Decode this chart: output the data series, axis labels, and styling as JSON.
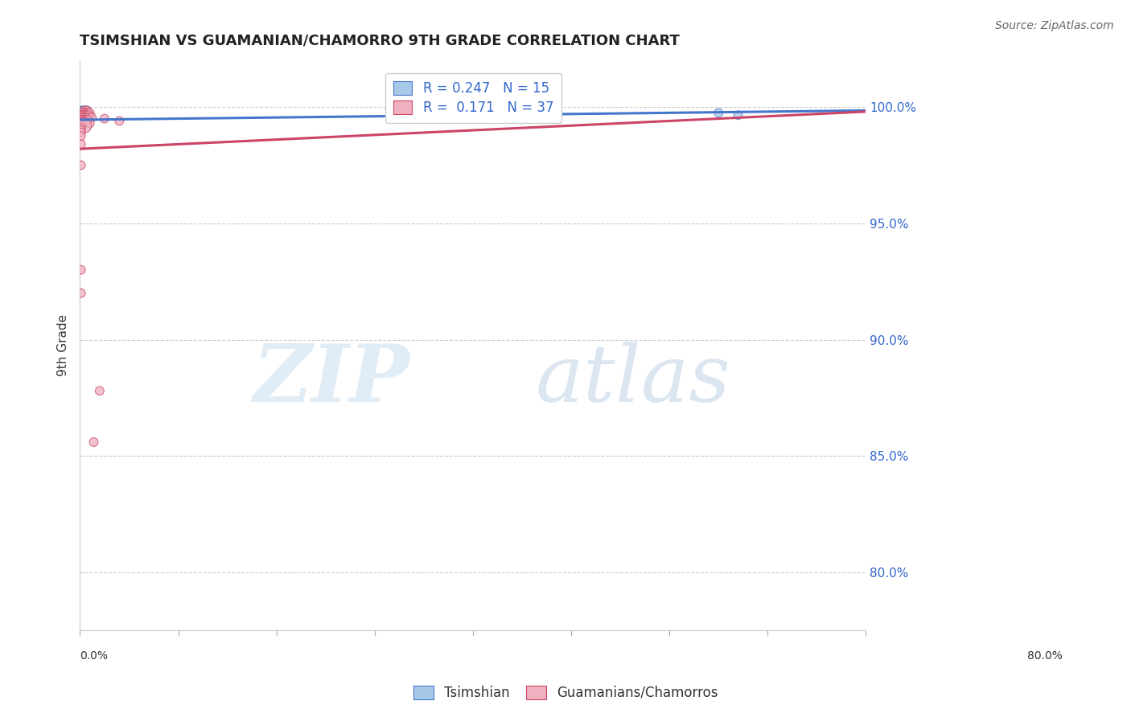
{
  "title": "TSIMSHIAN VS GUAMANIAN/CHAMORRO 9TH GRADE CORRELATION CHART",
  "source": "Source: ZipAtlas.com",
  "ylabel": "9th Grade",
  "ylabel_ticks": [
    "100.0%",
    "95.0%",
    "90.0%",
    "85.0%",
    "80.0%"
  ],
  "ylabel_values": [
    1.0,
    0.95,
    0.9,
    0.85,
    0.8
  ],
  "xtick_labels": [
    "0.0%",
    "",
    "",
    "",
    "",
    "",
    "",
    "",
    "80.0%"
  ],
  "xmin": 0.0,
  "xmax": 0.8,
  "ymin": 0.775,
  "ymax": 1.02,
  "legend_tsimshian_R": "0.247",
  "legend_tsimshian_N": "15",
  "legend_guamanian_R": "0.171",
  "legend_guamanian_N": "37",
  "blue_scatter_color": "#a8c8e8",
  "blue_line_color": "#4477cc",
  "pink_scatter_color": "#f0b0c0",
  "pink_line_color": "#cc4466",
  "legend_text_color": "#3366cc",
  "watermark_zip": "ZIP",
  "watermark_atlas": "atlas",
  "tsimshian_points": [
    [
      0.001,
      0.9985
    ],
    [
      0.003,
      0.9985
    ],
    [
      0.004,
      0.9985
    ],
    [
      0.006,
      0.9985
    ],
    [
      0.007,
      0.9985
    ],
    [
      0.003,
      0.9975
    ],
    [
      0.005,
      0.9975
    ],
    [
      0.006,
      0.9975
    ],
    [
      0.008,
      0.9975
    ],
    [
      0.005,
      0.9965
    ],
    [
      0.007,
      0.9965
    ],
    [
      0.009,
      0.9965
    ],
    [
      0.01,
      0.996
    ],
    [
      0.65,
      0.9975
    ],
    [
      0.67,
      0.9965
    ]
  ],
  "tsimshian_sizes": [
    60,
    60,
    60,
    60,
    60,
    80,
    60,
    100,
    60,
    120,
    60,
    60,
    60,
    60,
    60
  ],
  "guamanian_points": [
    [
      0.004,
      0.9985
    ],
    [
      0.007,
      0.9985
    ],
    [
      0.004,
      0.9975
    ],
    [
      0.006,
      0.9975
    ],
    [
      0.008,
      0.9975
    ],
    [
      0.01,
      0.9975
    ],
    [
      0.003,
      0.9965
    ],
    [
      0.005,
      0.9965
    ],
    [
      0.007,
      0.9965
    ],
    [
      0.009,
      0.9965
    ],
    [
      0.003,
      0.9955
    ],
    [
      0.005,
      0.9955
    ],
    [
      0.007,
      0.9955
    ],
    [
      0.009,
      0.9955
    ],
    [
      0.012,
      0.9955
    ],
    [
      0.002,
      0.9945
    ],
    [
      0.004,
      0.9945
    ],
    [
      0.006,
      0.9945
    ],
    [
      0.008,
      0.9945
    ],
    [
      0.002,
      0.9935
    ],
    [
      0.004,
      0.9935
    ],
    [
      0.006,
      0.9935
    ],
    [
      0.01,
      0.993
    ],
    [
      0.002,
      0.992
    ],
    [
      0.004,
      0.992
    ],
    [
      0.001,
      0.991
    ],
    [
      0.001,
      0.99
    ],
    [
      0.001,
      0.989
    ],
    [
      0.001,
      0.9875
    ],
    [
      0.025,
      0.995
    ],
    [
      0.04,
      0.994
    ],
    [
      0.001,
      0.984
    ],
    [
      0.001,
      0.975
    ],
    [
      0.02,
      0.878
    ],
    [
      0.014,
      0.856
    ],
    [
      0.001,
      0.93
    ],
    [
      0.001,
      0.92
    ]
  ],
  "guamanian_sizes": [
    60,
    60,
    60,
    60,
    60,
    60,
    60,
    60,
    60,
    60,
    60,
    60,
    60,
    60,
    60,
    60,
    60,
    60,
    60,
    60,
    60,
    60,
    60,
    60,
    180,
    60,
    60,
    60,
    60,
    60,
    60,
    60,
    60,
    60,
    60,
    60,
    60
  ],
  "blue_trendline": [
    0.0,
    0.9945,
    0.8,
    0.9985
  ],
  "pink_trendline": [
    0.0,
    0.982,
    0.8,
    0.998
  ]
}
